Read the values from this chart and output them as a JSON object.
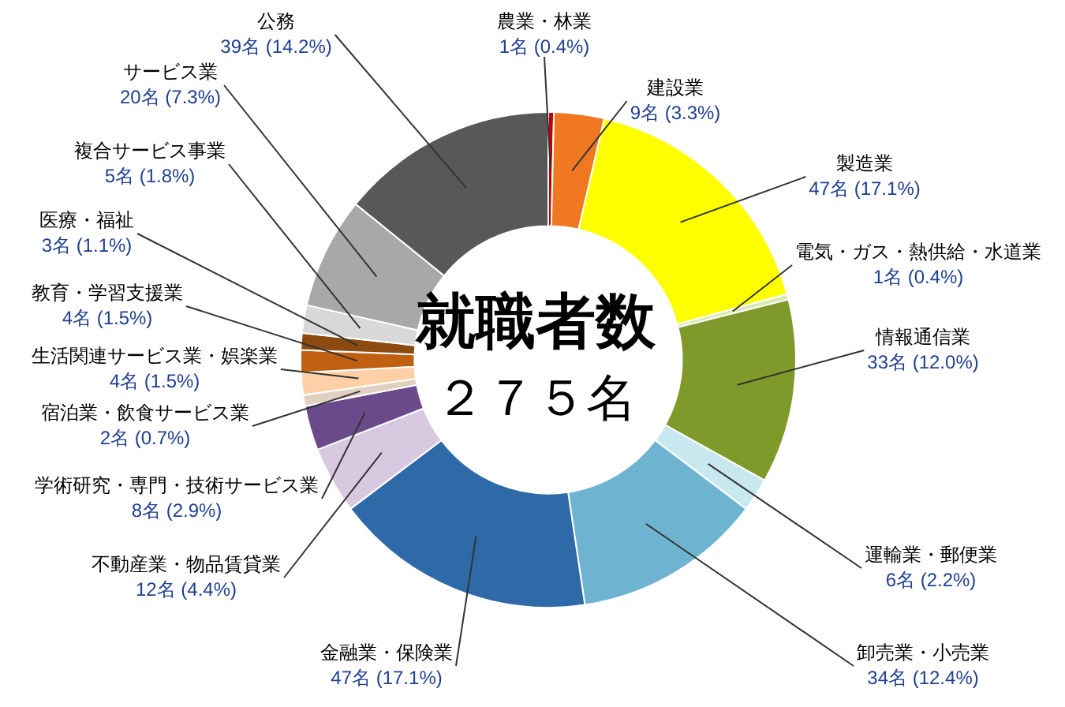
{
  "chart_data": {
    "type": "donut",
    "categories": [
      "農業・林業",
      "建設業",
      "製造業",
      "電気・ガス・熱供給・水道業",
      "情報通信業",
      "運輸業・郵便業",
      "卸売業・小売業",
      "金融業・保険業",
      "不動産業・物品賃貸業",
      "学術研究・専門・技術サービス業",
      "宿泊業・飲食サービス業",
      "生活関連サービス業・娯楽業",
      "教育・学習支援業",
      "医療・福祉",
      "複合サービス事業",
      "サービス業",
      "公務"
    ],
    "values": [
      1,
      9,
      47,
      1,
      33,
      6,
      34,
      47,
      12,
      8,
      2,
      4,
      4,
      3,
      5,
      20,
      39
    ],
    "value_labels": [
      "1名 (0.4%)",
      "9名 (3.3%)",
      "47名 (17.1%)",
      "1名 (0.4%)",
      "33名 (12.0%)",
      "6名 (2.2%)",
      "34名 (12.4%)",
      "47名 (17.1%)",
      "12名 (4.4%)",
      "8名 (2.9%)",
      "2名 (0.7%)",
      "4名 (1.5%)",
      "4名 (1.5%)",
      "3名 (1.1%)",
      "5名 (1.8%)",
      "20名 (7.3%)",
      "39名 (14.2%)"
    ],
    "colors": [
      "#c00000",
      "#f07820",
      "#ffff00",
      "#d8e8b0",
      "#7f9a2a",
      "#c8e8f0",
      "#6eb4d0",
      "#2e6aa8",
      "#d8c8e0",
      "#6a4a8a",
      "#e0d0c0",
      "#ffd0a8",
      "#c06010",
      "#8a4a10",
      "#d8d8d8",
      "#a8a8a8",
      "#585858"
    ],
    "annotations": [
      "就職者数",
      "２７５名"
    ],
    "legend": false
  }
}
